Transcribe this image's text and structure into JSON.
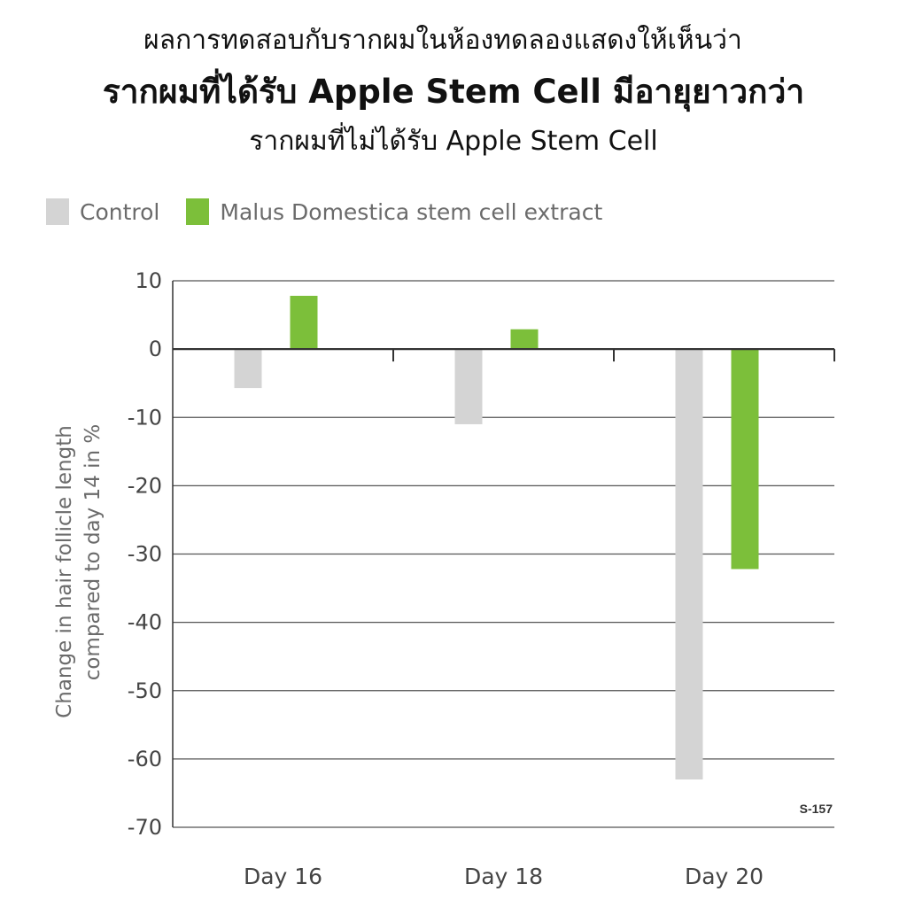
{
  "header": {
    "line1": "ผลการทดสอบกับรากผมในห้องทดลองแสดงให้เห็นว่า",
    "line2": "รากผมที่ได้รับ Apple Stem Cell มีอายุยาวกว่า",
    "line3": "รากผมที่ไม่ได้รับ Apple Stem Cell"
  },
  "colors": {
    "control": "#d4d4d4",
    "extract": "#7cbf3a",
    "grid": "#555555",
    "axis": "#333333"
  },
  "chart_data": {
    "type": "bar",
    "categories": [
      "Day 16",
      "Day 18",
      "Day 20"
    ],
    "series": [
      {
        "name": "Control",
        "values": [
          -5.7,
          -11,
          -63
        ]
      },
      {
        "name": "Malus Domestica stem cell extract",
        "values": [
          7.8,
          2.9,
          -32.2
        ]
      }
    ],
    "xlabel": "",
    "ylabel": "Change in hair follicle length compared to day 14 in %",
    "ylabel_lines": [
      "Change in hair follicle length",
      "compared to day 14 in %"
    ],
    "ylim": [
      -70,
      10
    ],
    "yticks": [
      "10",
      "0",
      "-10",
      "-20",
      "-30",
      "-40",
      "-50",
      "-60",
      "-70"
    ],
    "ytick_values": [
      10,
      0,
      -10,
      -20,
      -30,
      -40,
      -50,
      -60,
      -70
    ],
    "grid": true,
    "legend_position": "top-left",
    "annotation": "S-157"
  }
}
